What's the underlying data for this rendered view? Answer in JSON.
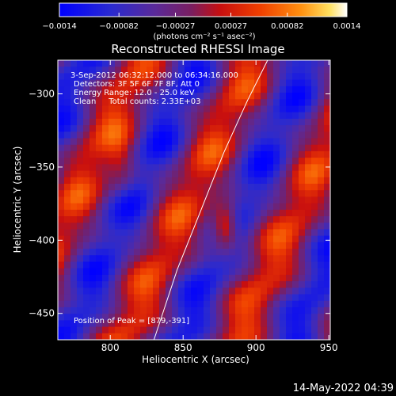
{
  "chart_data": {
    "type": "heatmap",
    "title": "Reconstructed RHESSI Image",
    "xlabel": "Heliocentric X (arcsec)",
    "ylabel": "Heliocentric Y (arcsec)",
    "xlim": [
      764,
      951
    ],
    "ylim": [
      -468,
      -277
    ],
    "x_ticks": [
      800,
      850,
      900,
      950
    ],
    "y_ticks": [
      -300,
      -350,
      -400,
      -450
    ],
    "colorbar": {
      "range": [
        -0.0014,
        0.0014
      ],
      "ticks": [
        -0.0014,
        -0.00082,
        -0.00027,
        0.00027,
        0.00082,
        0.0014
      ],
      "tick_labels": [
        "−0.0014",
        "−0.00082",
        "−0.00027",
        "0.00027",
        "0.00082",
        "0.0014"
      ],
      "units_label": "(photons cm⁻² s⁻¹ asec⁻²)",
      "colormap": "rainbow-like (blue → purple → red → orange → yellow → white)"
    },
    "annotations": [
      "3-Sep-2012 06:32:12.000 to 06:34:16.000",
      "Detectors: 3F 5F 6F 7F 8F, Att 0",
      "Energy Range: 12.0 - 25.0 keV",
      "Clean     Total counts: 2.33E+03"
    ],
    "peak_label": "Position of Peak = [879,-391]",
    "peak": [
      879,
      -391
    ],
    "limb_curve": [
      [
        830,
        -468
      ],
      [
        846,
        -420
      ],
      [
        862,
        -380
      ],
      [
        878,
        -340
      ],
      [
        894,
        -305
      ],
      [
        908,
        -277
      ]
    ],
    "footer_timestamp": "14-May-2022 04:39"
  }
}
